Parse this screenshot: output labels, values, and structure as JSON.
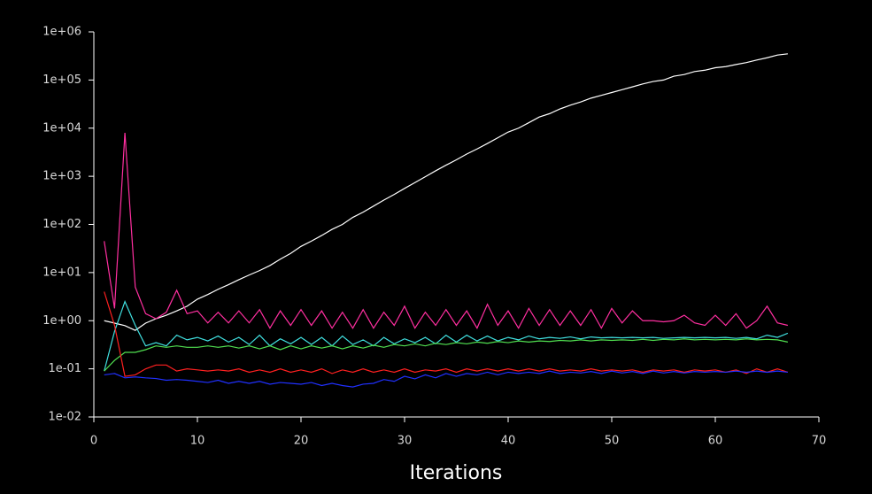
{
  "chart_data": {
    "type": "line",
    "x_label": "Iterations",
    "log_y": true,
    "background": "#000000",
    "axis_color": "#ffffff",
    "xlim": [
      0,
      70
    ],
    "xticks": [
      0,
      10,
      20,
      30,
      40,
      50,
      60,
      70
    ],
    "ylim": [
      0.01,
      1000000
    ],
    "yticks": [
      {
        "value": 1000000,
        "label": "1e+06"
      },
      {
        "value": 100000,
        "label": "1e+05"
      },
      {
        "value": 10000,
        "label": "1e+04"
      },
      {
        "value": 1000,
        "label": "1e+03"
      },
      {
        "value": 100,
        "label": "1e+02"
      },
      {
        "value": 10,
        "label": "1e+01"
      },
      {
        "value": 1,
        "label": "1e+00"
      },
      {
        "value": 0.1,
        "label": "1e-01"
      },
      {
        "value": 0.01,
        "label": "1e-02"
      }
    ],
    "x": [
      1,
      2,
      3,
      4,
      5,
      6,
      7,
      8,
      9,
      10,
      11,
      12,
      13,
      14,
      15,
      16,
      17,
      18,
      19,
      20,
      21,
      22,
      23,
      24,
      25,
      26,
      27,
      28,
      29,
      30,
      31,
      32,
      33,
      34,
      35,
      36,
      37,
      38,
      39,
      40,
      41,
      42,
      43,
      44,
      45,
      46,
      47,
      48,
      49,
      50,
      51,
      52,
      53,
      54,
      55,
      56,
      57,
      58,
      59,
      60,
      61,
      62,
      63,
      64,
      65,
      66,
      67
    ],
    "series": [
      {
        "color": "#ffffff",
        "values": [
          1,
          0.89,
          0.79,
          0.63,
          0.89,
          1.1,
          1.3,
          1.6,
          2,
          2.8,
          3.5,
          4.5,
          5.6,
          7.1,
          8.9,
          11,
          14,
          19,
          25,
          35,
          45,
          59,
          79,
          100,
          140,
          180,
          240,
          320,
          420,
          560,
          740,
          980,
          1300,
          1700,
          2200,
          2900,
          3700,
          4800,
          6300,
          8300,
          10000,
          13000,
          17000,
          20000,
          25000,
          30000,
          35000,
          42000,
          48000,
          55000,
          63000,
          72000,
          83000,
          93000,
          100000,
          120000,
          130000,
          150000,
          160000,
          180000,
          190000,
          210000,
          230000,
          260000,
          290000,
          330000,
          350000
        ]
      },
      {
        "color": "#ff2fa0",
        "values": [
          45,
          1.8,
          8000,
          5,
          1.4,
          1.1,
          1.5,
          4.3,
          1.4,
          1.6,
          0.9,
          1.5,
          0.9,
          1.6,
          0.9,
          1.7,
          0.7,
          1.6,
          0.8,
          1.7,
          0.8,
          1.6,
          0.7,
          1.5,
          0.7,
          1.7,
          0.7,
          1.5,
          0.8,
          2.0,
          0.7,
          1.5,
          0.8,
          1.7,
          0.8,
          1.6,
          0.7,
          2.2,
          0.8,
          1.6,
          0.7,
          1.8,
          0.8,
          1.7,
          0.8,
          1.6,
          0.8,
          1.7,
          0.7,
          1.8,
          0.9,
          1.6,
          1.0,
          1.0,
          0.95,
          1.0,
          1.3,
          0.9,
          0.8,
          1.3,
          0.8,
          1.4,
          0.7,
          1.0,
          2.0,
          0.9,
          0.8
        ]
      },
      {
        "color": "#40e0e0",
        "values": [
          0.09,
          0.6,
          2.5,
          0.8,
          0.3,
          0.35,
          0.3,
          0.5,
          0.4,
          0.45,
          0.38,
          0.48,
          0.36,
          0.45,
          0.32,
          0.5,
          0.3,
          0.42,
          0.33,
          0.45,
          0.32,
          0.45,
          0.3,
          0.48,
          0.32,
          0.4,
          0.3,
          0.45,
          0.33,
          0.42,
          0.35,
          0.45,
          0.33,
          0.5,
          0.36,
          0.5,
          0.38,
          0.48,
          0.38,
          0.45,
          0.4,
          0.48,
          0.42,
          0.45,
          0.43,
          0.46,
          0.42,
          0.46,
          0.44,
          0.45,
          0.44,
          0.45,
          0.44,
          0.45,
          0.43,
          0.44,
          0.45,
          0.44,
          0.45,
          0.44,
          0.45,
          0.43,
          0.45,
          0.42,
          0.5,
          0.45,
          0.55
        ]
      },
      {
        "color": "#50e050",
        "values": [
          0.09,
          0.15,
          0.22,
          0.22,
          0.25,
          0.3,
          0.28,
          0.3,
          0.28,
          0.28,
          0.3,
          0.28,
          0.3,
          0.27,
          0.3,
          0.26,
          0.3,
          0.25,
          0.3,
          0.26,
          0.3,
          0.27,
          0.3,
          0.26,
          0.3,
          0.27,
          0.31,
          0.28,
          0.32,
          0.3,
          0.33,
          0.3,
          0.34,
          0.32,
          0.35,
          0.33,
          0.36,
          0.34,
          0.37,
          0.35,
          0.38,
          0.36,
          0.38,
          0.37,
          0.39,
          0.38,
          0.4,
          0.38,
          0.4,
          0.39,
          0.4,
          0.39,
          0.41,
          0.39,
          0.41,
          0.4,
          0.42,
          0.4,
          0.41,
          0.4,
          0.41,
          0.4,
          0.42,
          0.4,
          0.41,
          0.4,
          0.36
        ]
      },
      {
        "color": "#ff2020",
        "values": [
          4,
          0.8,
          0.07,
          0.075,
          0.1,
          0.12,
          0.12,
          0.09,
          0.1,
          0.095,
          0.09,
          0.095,
          0.09,
          0.1,
          0.085,
          0.095,
          0.085,
          0.1,
          0.085,
          0.095,
          0.085,
          0.1,
          0.08,
          0.095,
          0.085,
          0.1,
          0.085,
          0.095,
          0.085,
          0.1,
          0.085,
          0.095,
          0.09,
          0.1,
          0.085,
          0.1,
          0.09,
          0.1,
          0.09,
          0.1,
          0.09,
          0.1,
          0.09,
          0.1,
          0.09,
          0.095,
          0.09,
          0.1,
          0.09,
          0.095,
          0.09,
          0.095,
          0.085,
          0.095,
          0.09,
          0.095,
          0.085,
          0.095,
          0.09,
          0.095,
          0.085,
          0.095,
          0.08,
          0.1,
          0.085,
          0.1,
          0.085
        ]
      },
      {
        "color": "#2030ff",
        "values": [
          0.075,
          0.08,
          0.065,
          0.068,
          0.065,
          0.063,
          0.058,
          0.06,
          0.058,
          0.055,
          0.052,
          0.058,
          0.05,
          0.055,
          0.05,
          0.055,
          0.048,
          0.052,
          0.05,
          0.048,
          0.052,
          0.045,
          0.05,
          0.045,
          0.042,
          0.048,
          0.05,
          0.06,
          0.055,
          0.07,
          0.062,
          0.075,
          0.065,
          0.08,
          0.07,
          0.08,
          0.075,
          0.085,
          0.075,
          0.085,
          0.08,
          0.085,
          0.08,
          0.09,
          0.08,
          0.085,
          0.082,
          0.088,
          0.08,
          0.09,
          0.082,
          0.088,
          0.08,
          0.09,
          0.082,
          0.088,
          0.082,
          0.088,
          0.085,
          0.088,
          0.085,
          0.09,
          0.085,
          0.09,
          0.085,
          0.09,
          0.085
        ]
      }
    ]
  }
}
